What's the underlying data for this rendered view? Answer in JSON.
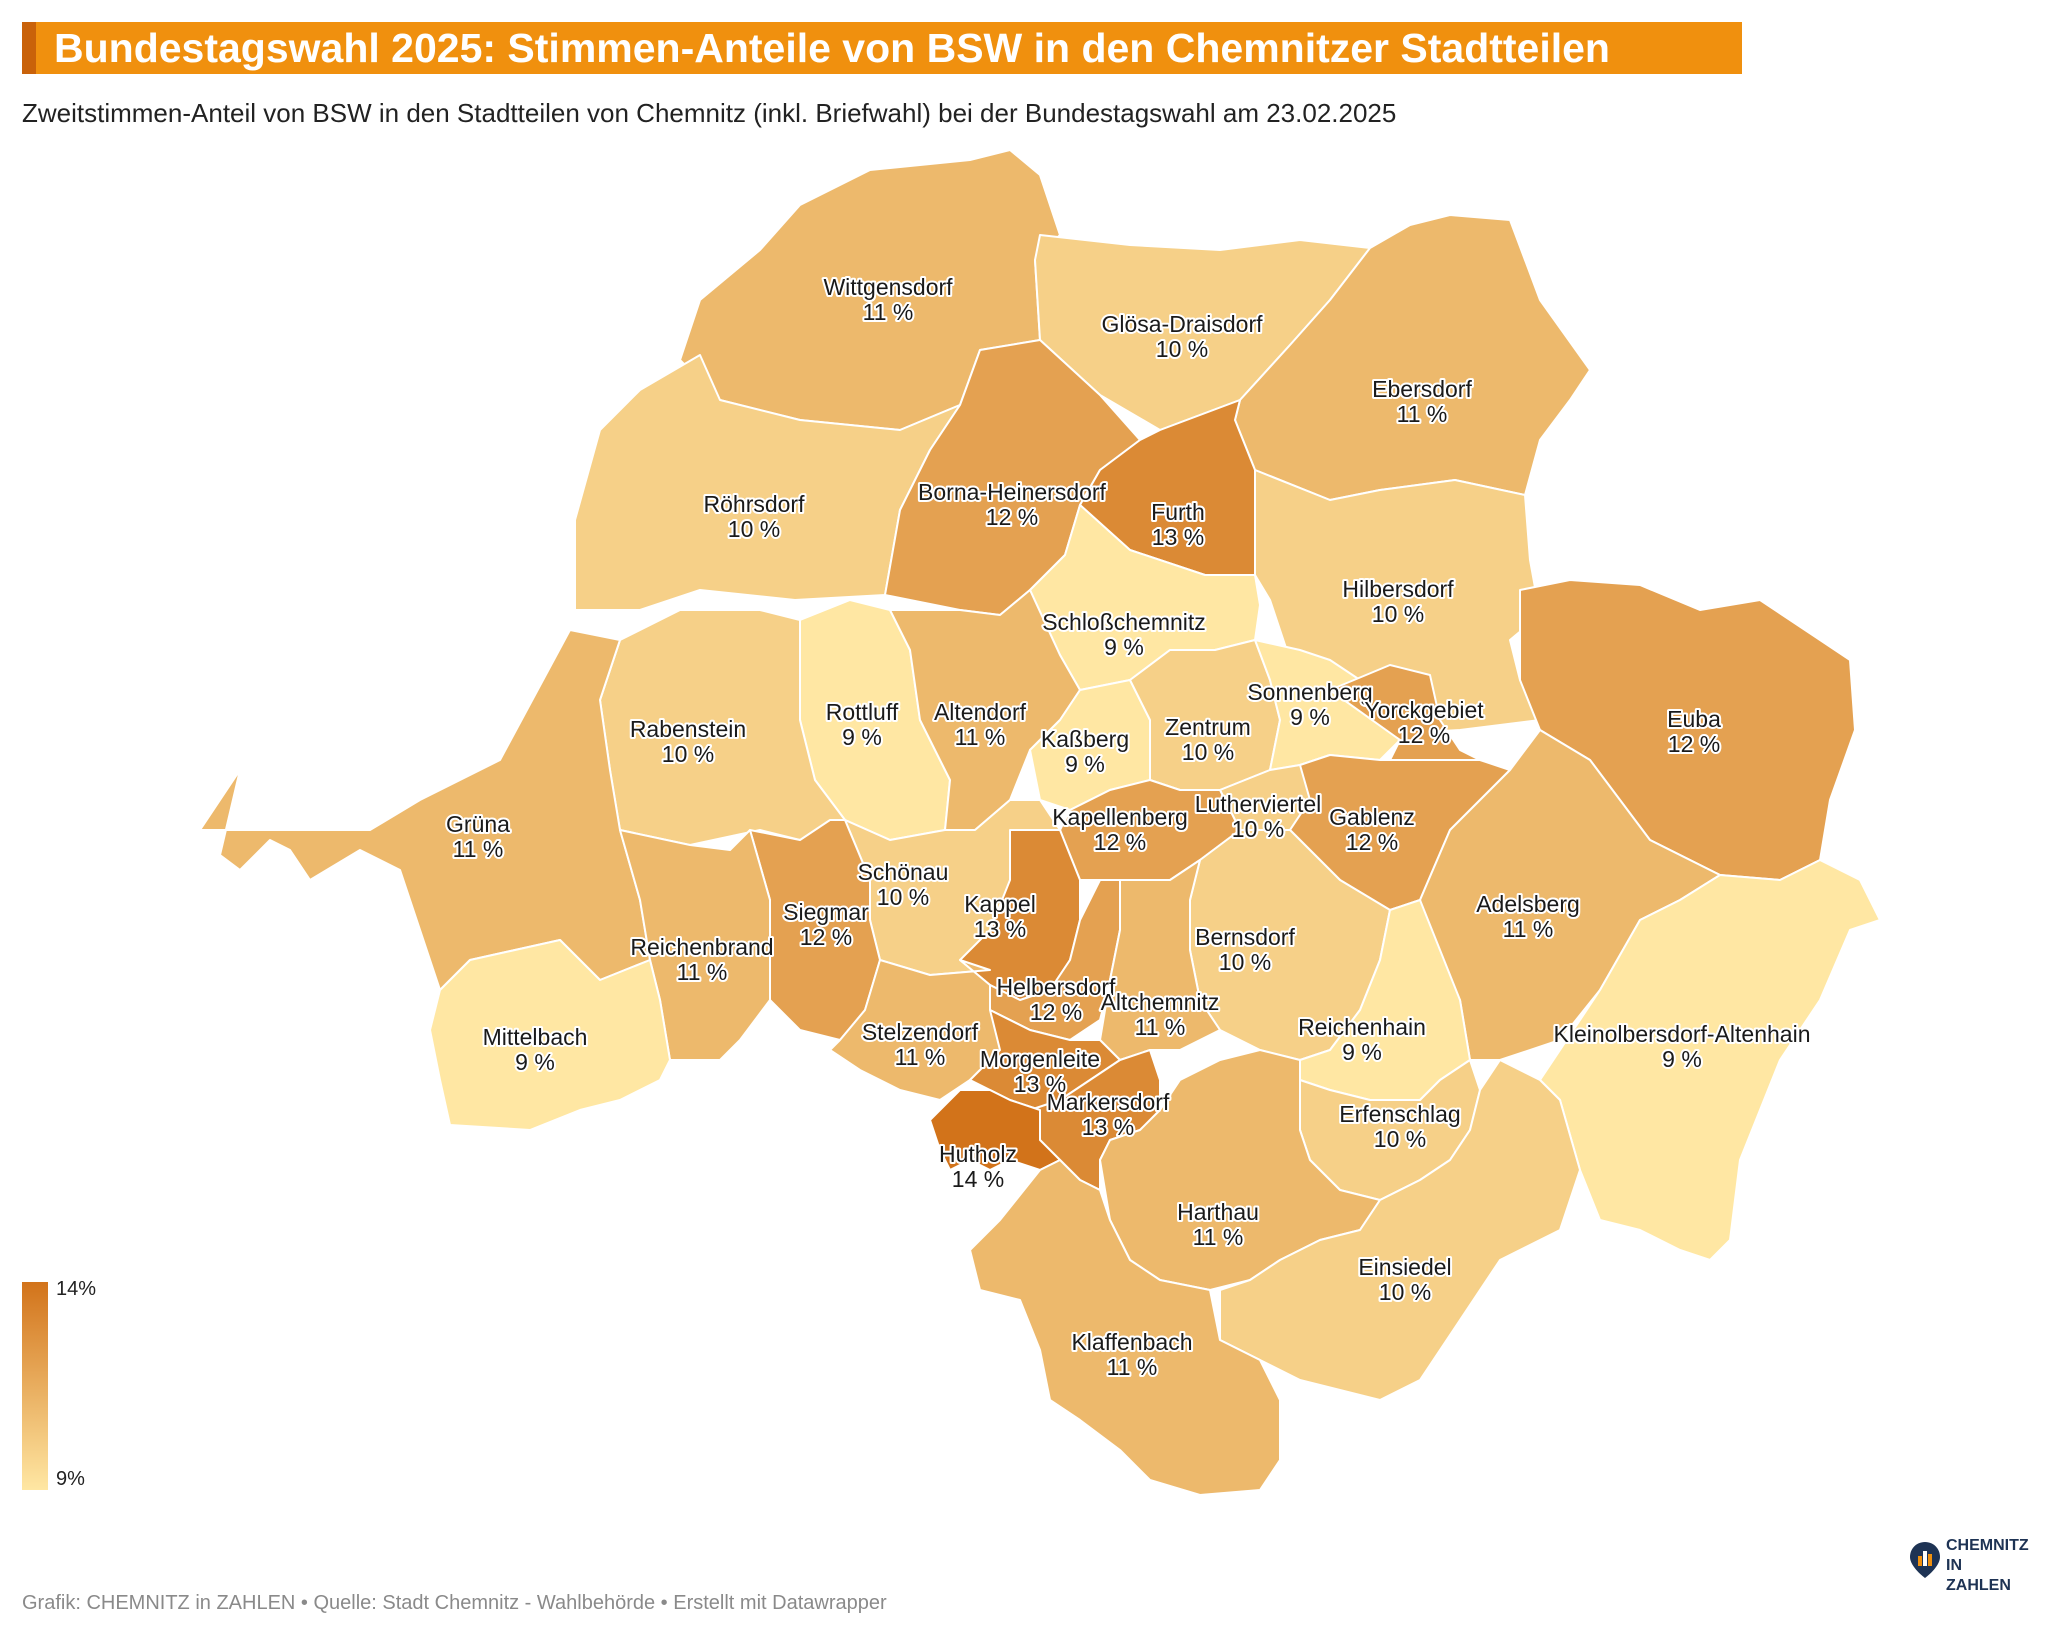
{
  "title": "Bundestagswahl 2025: Stimmen-Anteile von BSW in den Chemnitzer Stadtteilen",
  "subtitle": "Zweitstimmen-Anteil von BSW in den Stadtteilen von Chemnitz (inkl. Briefwahl) bei der Bundestagswahl am 23.02.2025",
  "legend": {
    "max_label": "14%",
    "min_label": "9%",
    "max_value": 14,
    "min_value": 9,
    "color_max": "#d2731a",
    "color_min": "#ffe7a3"
  },
  "footer": "Grafik: CHEMNITZ in ZAHLEN • Quelle: Stadt Chemnitz - Wahlbehörde • Erstellt mit Datawrapper",
  "logo": {
    "line1": "CHEMNITZ",
    "line2": "IN ZAHLEN"
  },
  "districts": [
    {
      "name": "Wittgensdorf",
      "label": "11 %",
      "value": 11
    },
    {
      "name": "Glösa-Draisdorf",
      "label": "10 %",
      "value": 10
    },
    {
      "name": "Ebersdorf",
      "label": "11 %",
      "value": 11
    },
    {
      "name": "Röhrsdorf",
      "label": "10 %",
      "value": 10
    },
    {
      "name": "Borna-Heinersdorf",
      "label": "12 %",
      "value": 12
    },
    {
      "name": "Furth",
      "label": "13 %",
      "value": 13
    },
    {
      "name": "Hilbersdorf",
      "label": "10 %",
      "value": 10
    },
    {
      "name": "Schloßchemnitz",
      "label": "9 %",
      "value": 9
    },
    {
      "name": "Rottluff",
      "label": "9 %",
      "value": 9
    },
    {
      "name": "Altendorf",
      "label": "11 %",
      "value": 11
    },
    {
      "name": "Rabenstein",
      "label": "10 %",
      "value": 10
    },
    {
      "name": "Kaßberg",
      "label": "9 %",
      "value": 9
    },
    {
      "name": "Zentrum",
      "label": "10 %",
      "value": 10
    },
    {
      "name": "Sonnenberg",
      "label": "9 %",
      "value": 9
    },
    {
      "name": "Yorckgebiet",
      "label": "12 %",
      "value": 12
    },
    {
      "name": "Euba",
      "label": "12 %",
      "value": 12
    },
    {
      "name": "Grüna",
      "label": "11 %",
      "value": 11
    },
    {
      "name": "Lutherviertel",
      "label": "10 %",
      "value": 10
    },
    {
      "name": "Gablenz",
      "label": "12 %",
      "value": 12
    },
    {
      "name": "Kapellenberg",
      "label": "12 %",
      "value": 12
    },
    {
      "name": "Schönau",
      "label": "10 %",
      "value": 10
    },
    {
      "name": "Kappel",
      "label": "13 %",
      "value": 13
    },
    {
      "name": "Siegmar",
      "label": "12 %",
      "value": 12
    },
    {
      "name": "Reichenbrand",
      "label": "11 %",
      "value": 11
    },
    {
      "name": "Adelsberg",
      "label": "11 %",
      "value": 11
    },
    {
      "name": "Bernsdorf",
      "label": "10 %",
      "value": 10
    },
    {
      "name": "Helbersdorf",
      "label": "12 %",
      "value": 12
    },
    {
      "name": "Altchemnitz",
      "label": "11 %",
      "value": 11
    },
    {
      "name": "Reichenhain",
      "label": "9 %",
      "value": 9
    },
    {
      "name": "Kleinolbersdorf-Altenhain",
      "label": "9 %",
      "value": 9
    },
    {
      "name": "Mittelbach",
      "label": "9 %",
      "value": 9
    },
    {
      "name": "Stelzendorf",
      "label": "11 %",
      "value": 11
    },
    {
      "name": "Morgenleite",
      "label": "13 %",
      "value": 13
    },
    {
      "name": "Markersdorf",
      "label": "13 %",
      "value": 13
    },
    {
      "name": "Erfenschlag",
      "label": "10 %",
      "value": 10
    },
    {
      "name": "Hutholz",
      "label": "14 %",
      "value": 14
    },
    {
      "name": "Harthau",
      "label": "11 %",
      "value": 11
    },
    {
      "name": "Einsiedel",
      "label": "10 %",
      "value": 10
    },
    {
      "name": "Klaffenbach",
      "label": "11 %",
      "value": 11
    }
  ]
}
